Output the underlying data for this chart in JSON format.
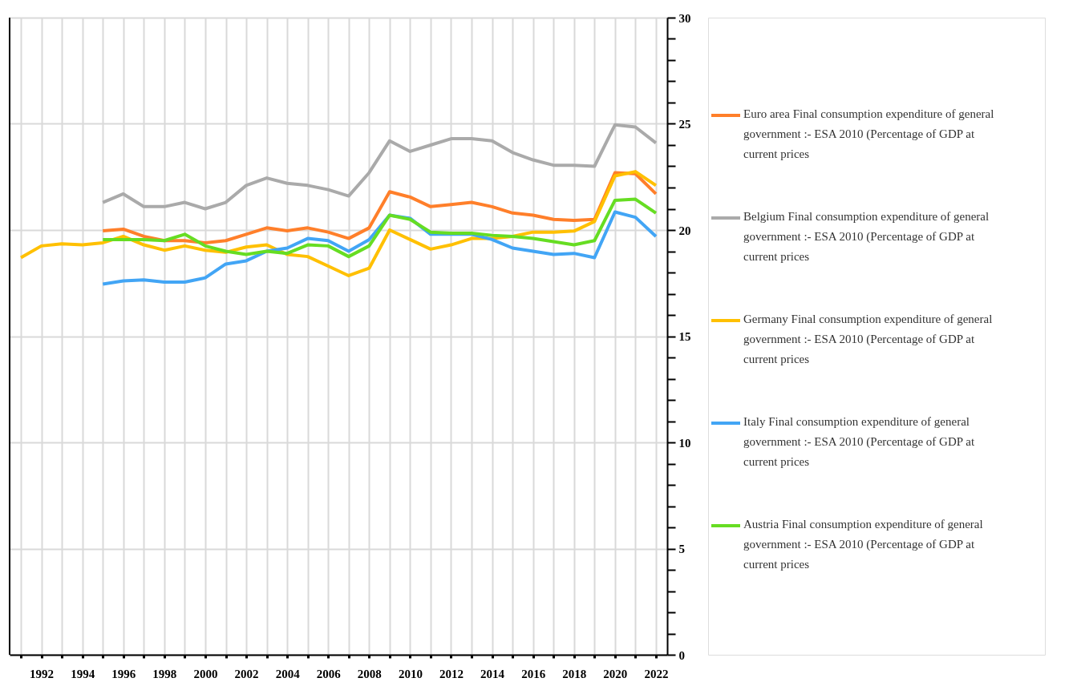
{
  "chart_data": {
    "type": "line",
    "x": [
      1991,
      1992,
      1993,
      1994,
      1995,
      1996,
      1997,
      1998,
      1999,
      2000,
      2001,
      2002,
      2003,
      2004,
      2005,
      2006,
      2007,
      2008,
      2009,
      2010,
      2011,
      2012,
      2013,
      2014,
      2015,
      2016,
      2017,
      2018,
      2019,
      2020,
      2021,
      2022
    ],
    "series": [
      {
        "name": "Euro area Final consumption expenditure of general government :- ESA 2010 (Percentage of GDP at current prices",
        "color": "#ff7f2a",
        "values": [
          null,
          null,
          null,
          null,
          19.96,
          20.04,
          19.7,
          19.5,
          19.5,
          19.4,
          19.5,
          19.8,
          20.1,
          19.96,
          20.1,
          19.9,
          19.6,
          20.1,
          21.8,
          21.55,
          21.1,
          21.2,
          21.3,
          21.1,
          20.8,
          20.7,
          20.5,
          20.45,
          20.5,
          22.7,
          22.65,
          21.7
        ]
      },
      {
        "name": "Belgium Final consumption expenditure of general government :- ESA 2010 (Percentage of GDP at current prices",
        "color": "#aaaaaa",
        "values": [
          null,
          null,
          null,
          null,
          21.3,
          21.7,
          21.1,
          21.1,
          21.3,
          21.0,
          21.3,
          22.1,
          22.45,
          22.2,
          22.1,
          21.9,
          21.6,
          22.7,
          24.2,
          23.7,
          24.0,
          24.3,
          24.3,
          24.2,
          23.65,
          23.3,
          23.05,
          23.05,
          23.0,
          24.95,
          24.85,
          24.1
        ]
      },
      {
        "name": "Germany Final consumption expenditure of general government :- ESA 2010 (Percentage of GDP at current prices",
        "color": "#ffc000",
        "values": [
          18.7,
          19.25,
          19.35,
          19.3,
          19.4,
          19.7,
          19.3,
          19.05,
          19.25,
          19.05,
          18.95,
          19.2,
          19.3,
          18.85,
          18.75,
          18.3,
          17.85,
          18.2,
          20.0,
          19.55,
          19.1,
          19.3,
          19.6,
          19.6,
          19.7,
          19.9,
          19.9,
          19.95,
          20.4,
          22.55,
          22.75,
          22.1
        ]
      },
      {
        "name": "Italy Final consumption expenditure of general government :- ESA 2010 (Percentage of GDP at current prices",
        "color": "#42a5f5",
        "values": [
          null,
          null,
          null,
          null,
          17.45,
          17.6,
          17.65,
          17.55,
          17.55,
          17.75,
          18.4,
          18.55,
          19.0,
          19.15,
          19.6,
          19.5,
          19.0,
          19.55,
          20.7,
          20.55,
          19.8,
          19.8,
          19.8,
          19.55,
          19.15,
          19.0,
          18.85,
          18.9,
          18.7,
          20.85,
          20.6,
          19.7
        ]
      },
      {
        "name": "Austria Final consumption expenditure of general government :- ESA 2010 (Percentage of GDP at current prices",
        "color": "#66dd22",
        "values": [
          null,
          null,
          null,
          null,
          19.55,
          19.55,
          19.55,
          19.5,
          19.8,
          19.25,
          19.0,
          18.85,
          19.0,
          18.9,
          19.3,
          19.25,
          18.75,
          19.25,
          20.7,
          20.5,
          19.9,
          19.85,
          19.85,
          19.75,
          19.7,
          19.6,
          19.45,
          19.3,
          19.5,
          21.4,
          21.45,
          20.8
        ]
      }
    ],
    "xlim": [
      1990.45,
      2022.55
    ],
    "xticks": [
      {
        "value": 1991,
        "label": null
      },
      1992,
      {
        "value": 1993,
        "label": null
      },
      1994,
      {
        "value": 1995,
        "label": null
      },
      1996,
      {
        "value": 1997,
        "label": null
      },
      1998,
      {
        "value": 1999,
        "label": null
      },
      2000,
      {
        "value": 2001,
        "label": null
      },
      2002,
      {
        "value": 2003,
        "label": null
      },
      2004,
      {
        "value": 2005,
        "label": null
      },
      2006,
      {
        "value": 2007,
        "label": null
      },
      2008,
      {
        "value": 2009,
        "label": null
      },
      2010,
      {
        "value": 2011,
        "label": null
      },
      2012,
      {
        "value": 2013,
        "label": null
      },
      2014,
      {
        "value": 2015,
        "label": null
      },
      2016,
      {
        "value": 2017,
        "label": null
      },
      2018,
      {
        "value": 2019,
        "label": null
      },
      2020,
      {
        "value": 2021,
        "label": null
      },
      2022
    ],
    "ylim": [
      0,
      30
    ],
    "yticks": [
      0,
      {
        "value": 1,
        "label": null
      },
      {
        "value": 2,
        "label": null
      },
      {
        "value": 3,
        "label": null
      },
      {
        "value": 4,
        "label": null
      },
      5,
      {
        "value": 6,
        "label": null
      },
      {
        "value": 7,
        "label": null
      },
      {
        "value": 8,
        "label": null
      },
      {
        "value": 9,
        "label": null
      },
      10,
      {
        "value": 11,
        "label": null
      },
      {
        "value": 12,
        "label": null
      },
      {
        "value": 13,
        "label": null
      },
      {
        "value": 14,
        "label": null
      },
      15,
      {
        "value": 16,
        "label": null
      },
      {
        "value": 17,
        "label": null
      },
      {
        "value": 18,
        "label": null
      },
      {
        "value": 19,
        "label": null
      },
      20,
      {
        "value": 21,
        "label": null
      },
      {
        "value": 22,
        "label": null
      },
      {
        "value": 23,
        "label": null
      },
      {
        "value": 24,
        "label": null
      },
      25,
      {
        "value": 26,
        "label": null
      },
      {
        "value": 27,
        "label": null
      },
      {
        "value": 28,
        "label": null
      },
      {
        "value": 29,
        "label": null
      },
      30
    ],
    "grid": true,
    "legend": "right",
    "marker": "none",
    "line_style": "solid"
  }
}
